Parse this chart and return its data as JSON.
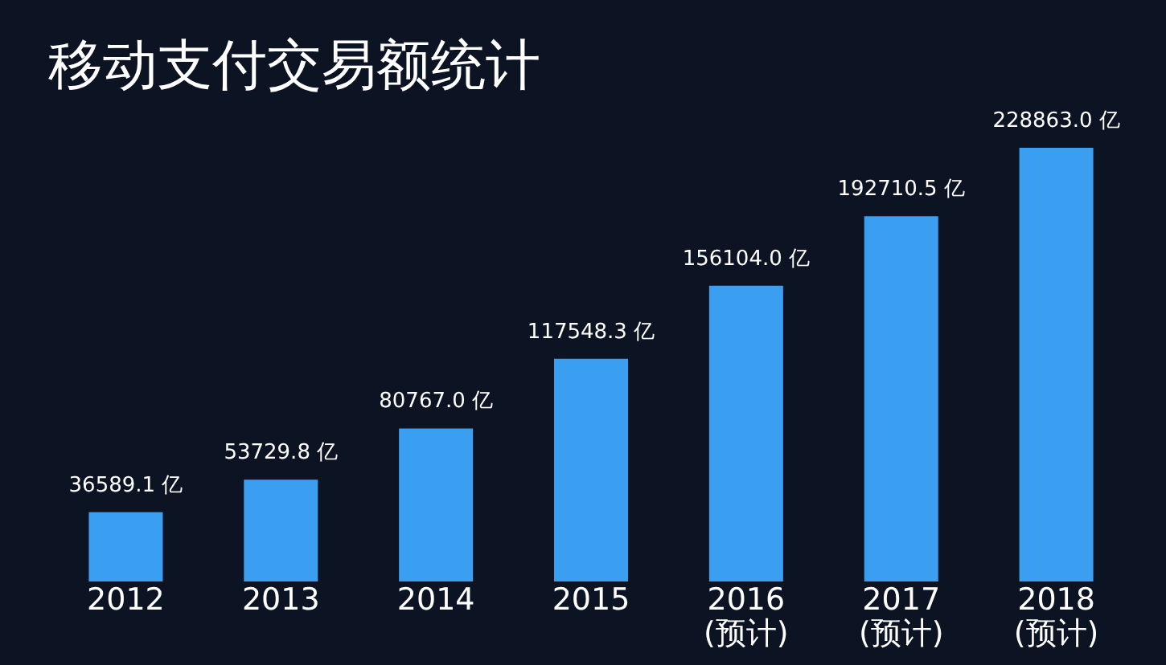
{
  "chart_data": {
    "type": "bar",
    "title": "移动支付交易额统计",
    "categories": [
      "2012",
      "2013",
      "2014",
      "2015",
      "2016\n(预计)",
      "2017\n(预计)",
      "2018\n(预计)"
    ],
    "values": [
      36589.1,
      53729.8,
      80767.0,
      117548.3,
      156104.0,
      192710.5,
      228863.0
    ],
    "value_labels": [
      "36589.1 亿",
      "53729.8 亿",
      "80767.0 亿",
      "117548.3 亿",
      "156104.0 亿",
      "192710.5 亿",
      "228863.0 亿"
    ],
    "color": "#3a9ff0",
    "grid": false
  }
}
